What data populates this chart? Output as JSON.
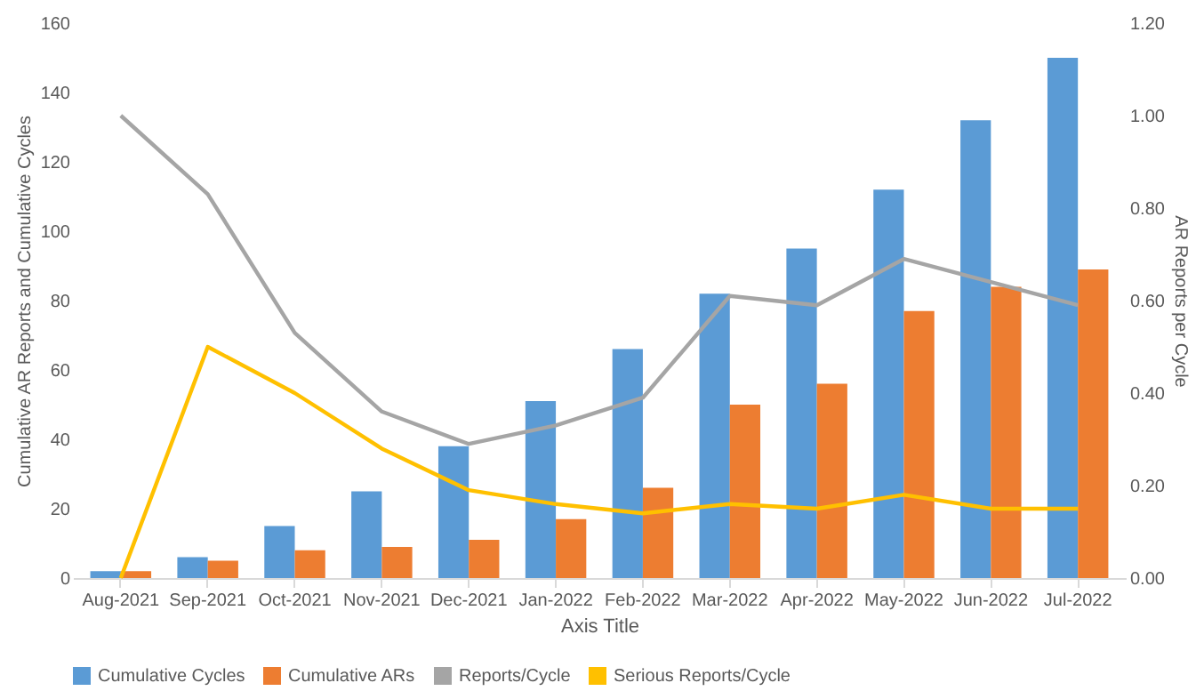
{
  "chart_data": {
    "type": "bar",
    "xlabel": "Axis Title",
    "ylabel": "Cumulative AR Reports and Cumulative Cycles",
    "y2label": "AR Reports per Cycle",
    "categories": [
      "Aug-2021",
      "Sep-2021",
      "Oct-2021",
      "Nov-2021",
      "Dec-2021",
      "Jan-2022",
      "Feb-2022",
      "Mar-2022",
      "Apr-2022",
      "May-2022",
      "Jun-2022",
      "Jul-2022"
    ],
    "series": [
      {
        "name": "Cumulative Cycles",
        "color": "#5b9bd5",
        "values": [
          2,
          6,
          15,
          25,
          38,
          51,
          66,
          82,
          95,
          112,
          132,
          150
        ]
      },
      {
        "name": "Cumulative ARs",
        "color": "#ed7d31",
        "values": [
          2,
          5,
          8,
          9,
          11,
          17,
          26,
          50,
          56,
          77,
          84,
          89
        ]
      },
      {
        "name": "Reports/Cycle",
        "type": "line",
        "axis": "y2",
        "color": "#a5a5a5",
        "values": [
          1.0,
          0.83,
          0.53,
          0.36,
          0.29,
          0.33,
          0.39,
          0.61,
          0.59,
          0.69,
          0.64,
          0.59
        ]
      },
      {
        "name": "Serious Reports/Cycle",
        "type": "line",
        "axis": "y2",
        "color": "#ffc000",
        "values": [
          0.0,
          0.5,
          0.4,
          0.28,
          0.19,
          0.16,
          0.14,
          0.16,
          0.15,
          0.18,
          0.15,
          0.15
        ]
      }
    ],
    "ylim": [
      0,
      160
    ],
    "yticks": [
      0,
      20,
      40,
      60,
      80,
      100,
      120,
      140,
      160
    ],
    "y2lim": [
      0,
      1.2
    ],
    "y2ticks": [
      {
        "value": 0,
        "label": "0.00"
      },
      {
        "value": 0.2,
        "label": "0.20"
      },
      {
        "value": 0.4,
        "label": "0.40"
      },
      {
        "value": 0.6,
        "label": "0.60"
      },
      {
        "value": 0.8,
        "label": "0.80"
      },
      {
        "value": 1.0,
        "label": "1.00"
      },
      {
        "value": 1.2,
        "label": "1.20"
      }
    ],
    "grid": false,
    "legend": "bottom",
    "line_style": "solid",
    "marker": "none"
  }
}
